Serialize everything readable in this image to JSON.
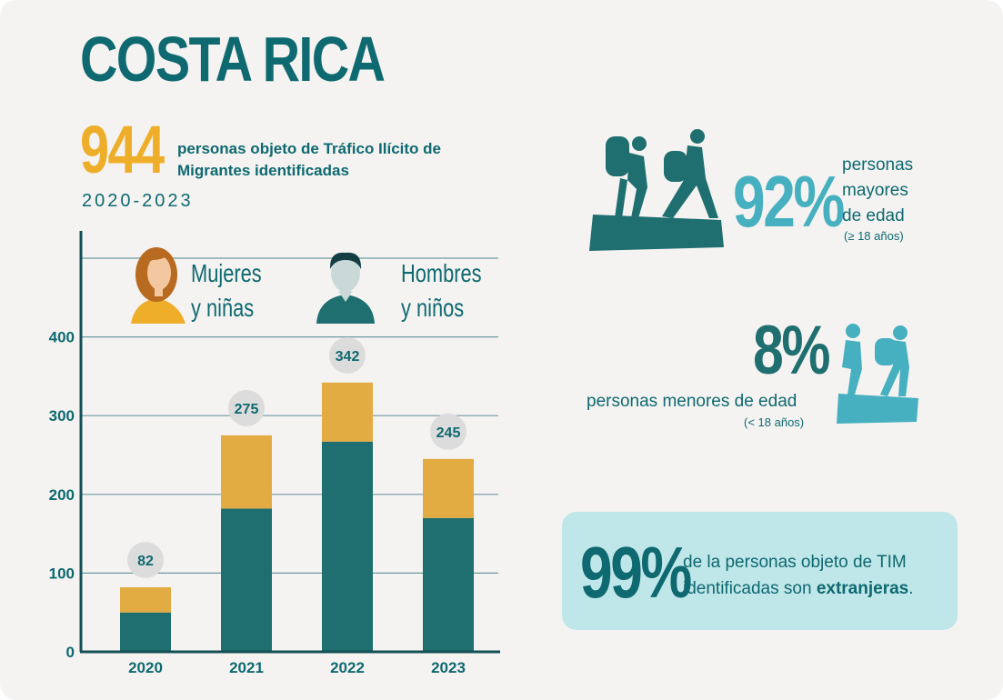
{
  "header": {
    "title": "COSTA RICA",
    "total_number": "944",
    "total_description": "personas objeto de Tráfico Ilícito de Migrantes identificadas",
    "period": "2020-2023"
  },
  "legend": {
    "women": "Mujeres y niñas",
    "men": "Hombres y niños"
  },
  "colors": {
    "teal_dark": "#0e6970",
    "teal_bar": "#1f6e70",
    "gold": "#e3ac42",
    "light_teal": "#46b0c0",
    "box_bg": "#bfe6e8",
    "bg": "#f4f3f1"
  },
  "chart_data": {
    "type": "bar",
    "stacked": true,
    "categories": [
      "2020",
      "2021",
      "2022",
      "2023"
    ],
    "series": [
      {
        "name": "Hombres y niños",
        "values": [
          50,
          182,
          267,
          170
        ],
        "color": "#1f6e70"
      },
      {
        "name": "Mujeres y niñas",
        "values": [
          32,
          93,
          75,
          75
        ],
        "color": "#e3ac42"
      }
    ],
    "totals": [
      "82",
      "275",
      "342",
      "245"
    ],
    "ylim": [
      0,
      500
    ],
    "yticks": [
      "0",
      "100",
      "200",
      "300",
      "400"
    ],
    "ytick_values": [
      0,
      100,
      200,
      300,
      400
    ],
    "grid": true
  },
  "stats": {
    "adults_percent": "92%",
    "adults_line1": "personas",
    "adults_line2": "mayores",
    "adults_line3": "de edad",
    "adults_note": "(≥ 18 años)",
    "minors_percent": "8%",
    "minors_text": "personas menores de edad",
    "minors_note": "(< 18 años)",
    "foreign_percent": "99%",
    "foreign_text_line1": "de la personas objeto de TIM",
    "foreign_text_line2": "identificadas son",
    "foreign_bold": "extranjeras",
    "foreign_end": "."
  },
  "icons": [
    "woman-icon",
    "man-icon",
    "hikers-adults-icon",
    "hikers-children-icon"
  ]
}
